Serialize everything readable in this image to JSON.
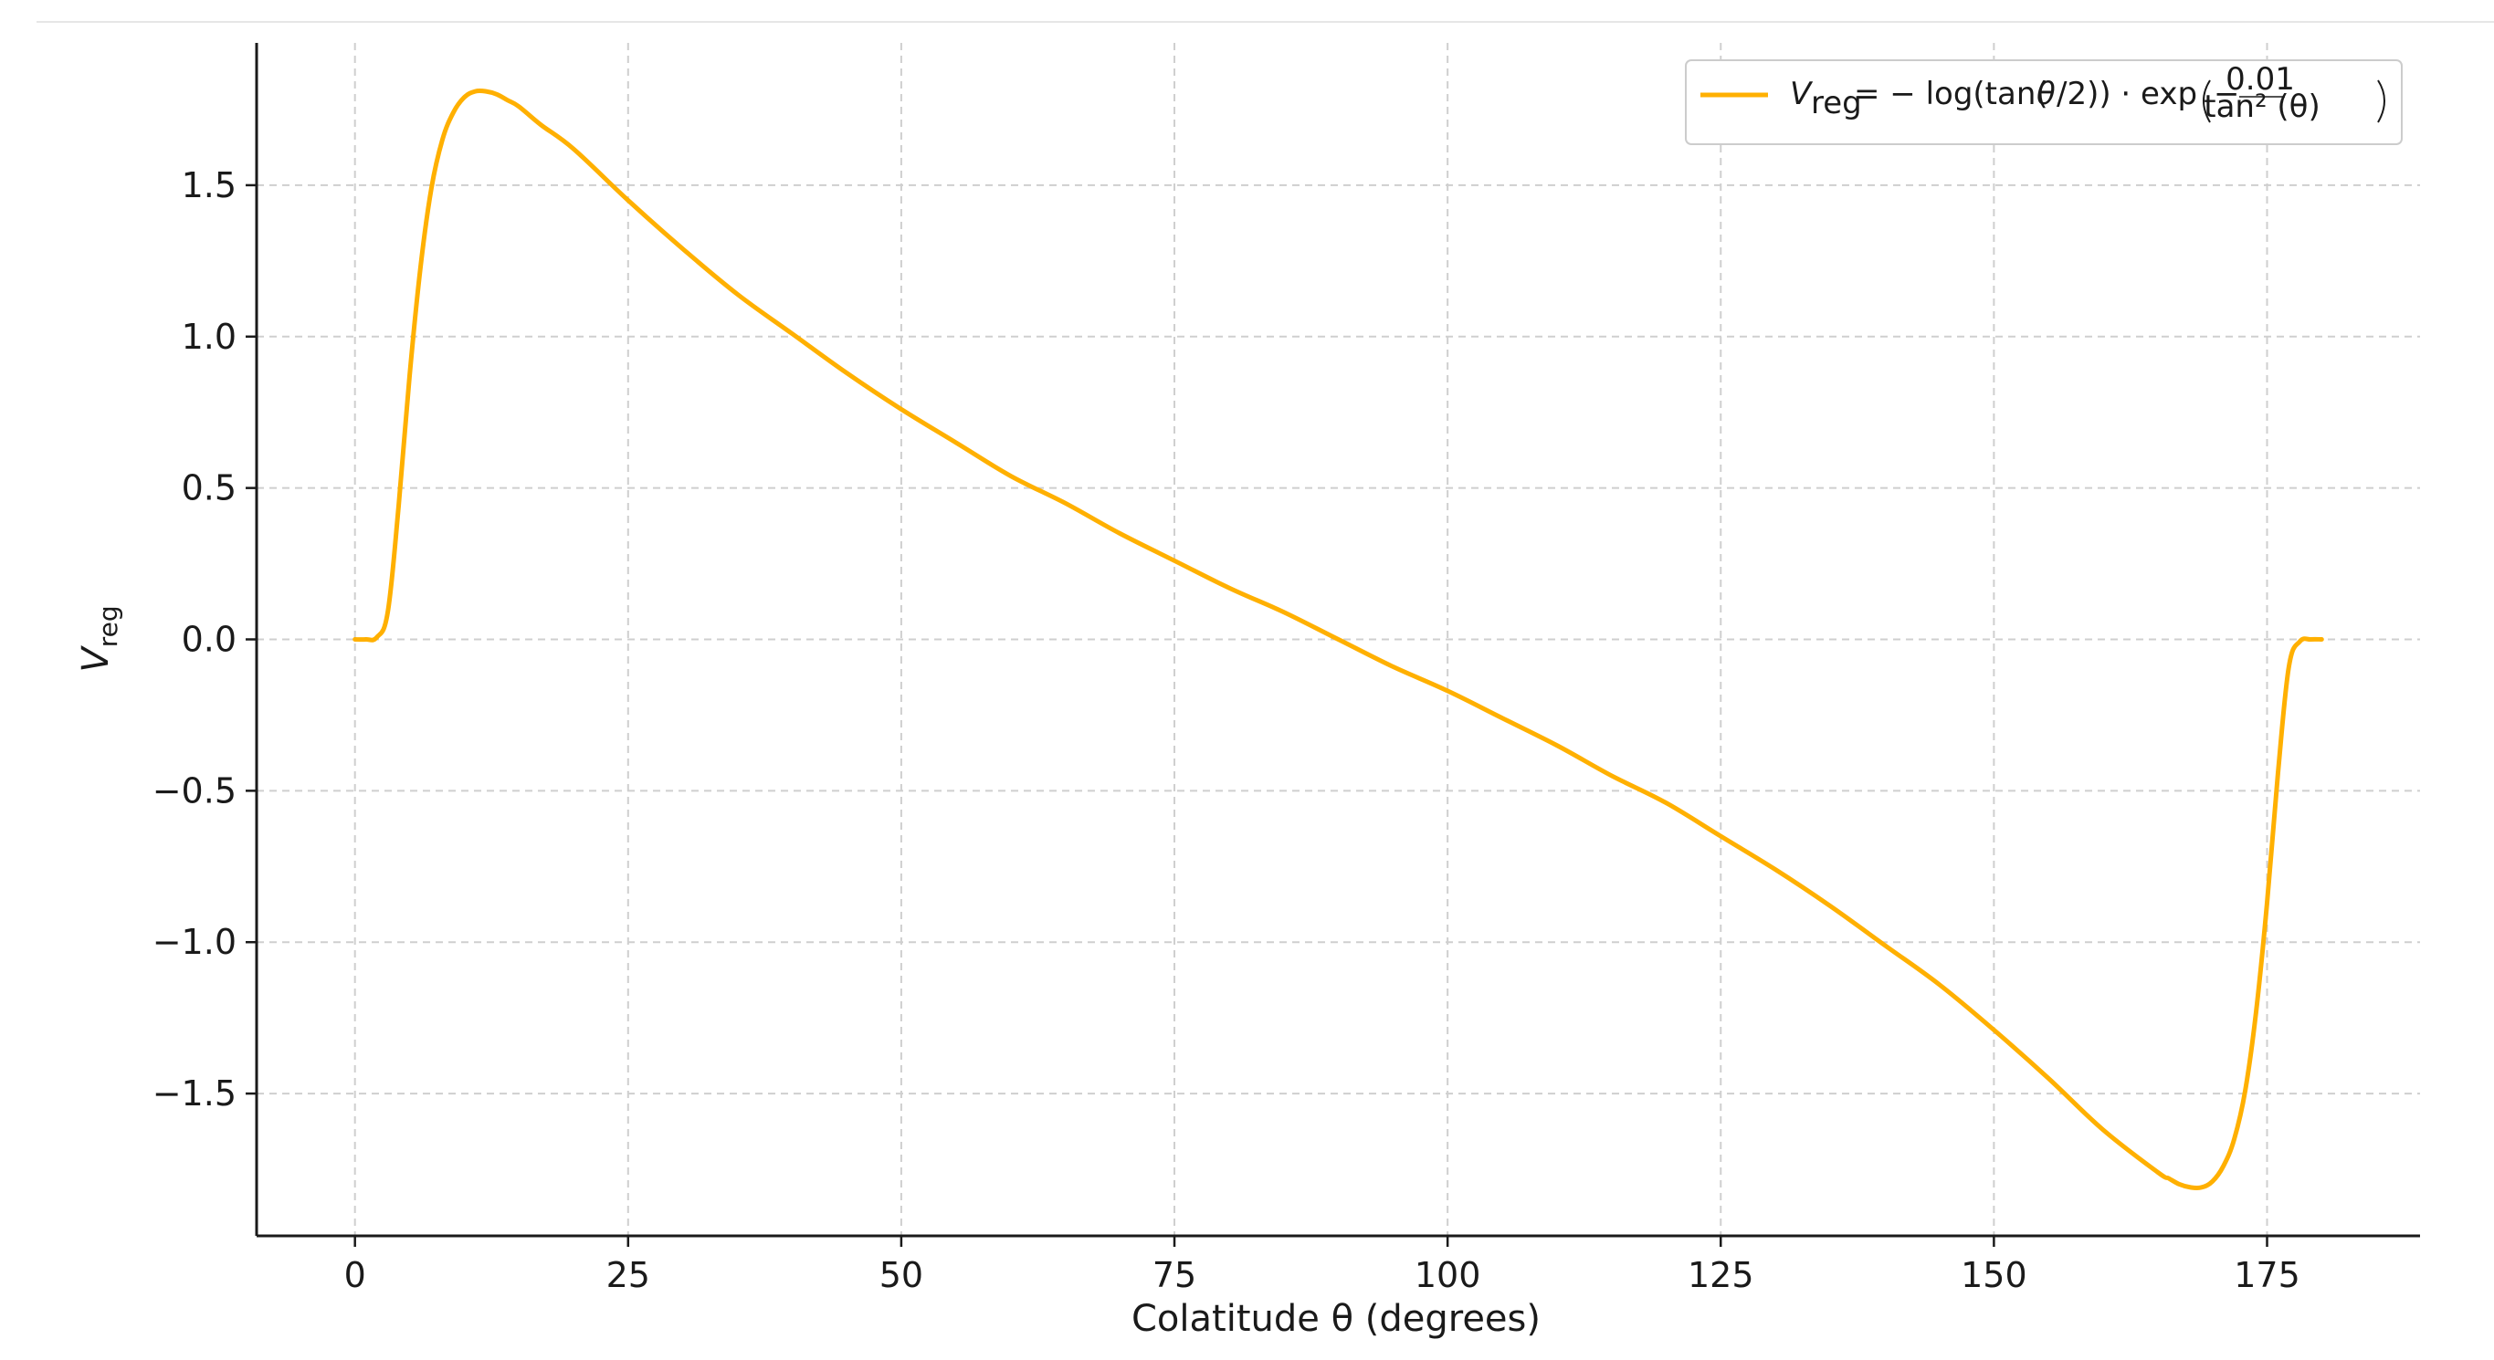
{
  "chart_data": {
    "type": "line",
    "title": "",
    "xlabel": "Colatitude θ (degrees)",
    "ylabel": "V_reg",
    "xlim": [
      -9,
      189
    ],
    "ylim": [
      -1.97,
      1.97
    ],
    "x_ticks": [
      0,
      25,
      50,
      75,
      100,
      125,
      150,
      175
    ],
    "x_tick_labels": [
      "0",
      "25",
      "50",
      "75",
      "100",
      "125",
      "150",
      "175"
    ],
    "y_ticks": [
      -1.5,
      -1.0,
      -0.5,
      0.0,
      0.5,
      1.0,
      1.5
    ],
    "y_tick_labels": [
      "−1.5",
      "−1.0",
      "−0.5",
      "0.0",
      "0.5",
      "1.0",
      "1.5"
    ],
    "grid": true,
    "legend_position": "top-right",
    "series": [
      {
        "name": "V_reg = − log(tan(θ/2)) · exp(−0.01/tan²(θ))",
        "color": "#FFB000",
        "x": [
          0,
          1,
          2,
          3,
          4,
          5,
          6,
          7,
          8,
          9,
          10,
          11,
          12,
          13,
          14,
          15,
          17,
          20,
          25,
          30,
          35,
          40,
          45,
          50,
          55,
          60,
          65,
          70,
          75,
          80,
          85,
          90,
          95,
          100,
          105,
          110,
          115,
          120,
          125,
          130,
          135,
          140,
          145,
          150,
          155,
          160,
          165,
          166,
          167,
          168,
          169,
          170,
          171,
          172,
          173,
          174,
          175,
          176,
          177,
          178,
          179,
          180
        ],
        "y": [
          0,
          0,
          0.007,
          0.09,
          0.44,
          0.87,
          1.23,
          1.49,
          1.65,
          1.74,
          1.79,
          1.81,
          1.81,
          1.8,
          1.78,
          1.76,
          1.7,
          1.62,
          1.45,
          1.29,
          1.14,
          1.01,
          0.88,
          0.76,
          0.65,
          0.54,
          0.45,
          0.35,
          0.26,
          0.17,
          0.09,
          0.0,
          -0.09,
          -0.17,
          -0.26,
          -0.35,
          -0.45,
          -0.54,
          -0.65,
          -0.76,
          -0.88,
          -1.01,
          -1.14,
          -1.29,
          -1.45,
          -1.62,
          -1.76,
          -1.78,
          -1.8,
          -1.81,
          -1.81,
          -1.79,
          -1.74,
          -1.65,
          -1.49,
          -1.23,
          -0.87,
          -0.44,
          -0.09,
          -0.007,
          0,
          0
        ]
      }
    ]
  }
}
